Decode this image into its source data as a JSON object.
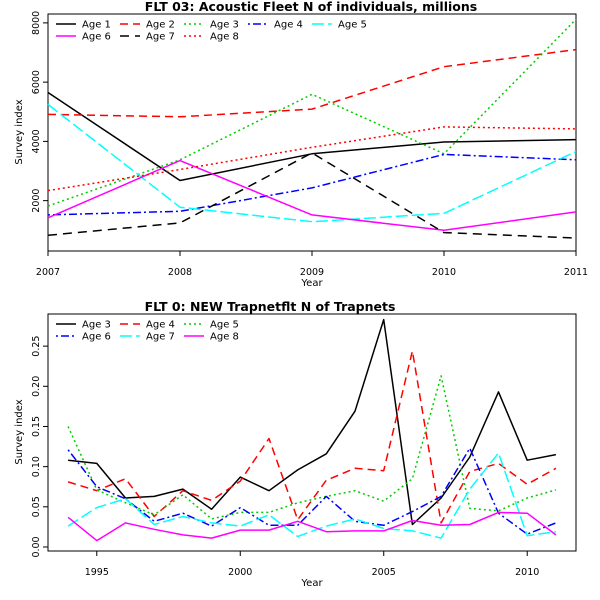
{
  "chart_data": [
    {
      "type": "line",
      "title": "FLT 03: Acoustic Fleet  N of individuals, millions",
      "xlabel": "Year",
      "ylabel": "Survey index",
      "xlim": [
        2007,
        2011
      ],
      "ylim": [
        300,
        8300
      ],
      "xticks": [
        "2007",
        "2008",
        "2009",
        "2010",
        "2011"
      ],
      "yticks": [
        "2000",
        "4000",
        "6000",
        "8000"
      ],
      "x": [
        2007,
        2008,
        2009,
        2010,
        2011
      ],
      "series": [
        {
          "name": "Age 1",
          "color": "#000000",
          "dash": "solid",
          "values": [
            5650,
            2680,
            3580,
            3980,
            4060
          ]
        },
        {
          "name": "Age 2",
          "color": "#ff0000",
          "dash": "dashed",
          "values": [
            4910,
            4830,
            5090,
            6520,
            7100
          ]
        },
        {
          "name": "Age 3",
          "color": "#00cd00",
          "dash": "dotted",
          "values": [
            1820,
            3380,
            5590,
            3580,
            8120
          ]
        },
        {
          "name": "Age 4",
          "color": "#0000ff",
          "dash": "dotdash",
          "values": [
            1520,
            1640,
            2430,
            3560,
            3380
          ]
        },
        {
          "name": "Age 5",
          "color": "#00ffff",
          "dash": "longdash",
          "values": [
            5250,
            1780,
            1290,
            1570,
            3660
          ]
        },
        {
          "name": "Age 6",
          "color": "#ff00ff",
          "dash": "solid",
          "values": [
            1420,
            3350,
            1520,
            1000,
            1620
          ]
        },
        {
          "name": "Age 7",
          "color": "#000000",
          "dash": "dashed2",
          "values": [
            830,
            1250,
            3610,
            920,
            740
          ]
        },
        {
          "name": "Age 8",
          "color": "#ff0000",
          "dash": "dotted",
          "values": [
            2340,
            3050,
            3800,
            4490,
            4420
          ]
        }
      ]
    },
    {
      "type": "line",
      "title": "FLT 0: NEW Trapnetflt    N of Trapnets",
      "xlabel": "Year",
      "ylabel": "Survey index",
      "xlim": [
        1993.3,
        2011.7
      ],
      "ylim": [
        -0.005,
        0.29
      ],
      "xticks": [
        "1995",
        "2000",
        "2005",
        "2010"
      ],
      "yticks": [
        "0.00",
        "0.05",
        "0.10",
        "0.15",
        "0.20",
        "0.25"
      ],
      "x": [
        1994,
        1995,
        1996,
        1997,
        1998,
        1999,
        2000,
        2001,
        2002,
        2003,
        2004,
        2005,
        2006,
        2007,
        2008,
        2009,
        2010,
        2011
      ],
      "series": [
        {
          "name": "Age 3",
          "color": "#000000",
          "dash": "solid",
          "values": [
            0.108,
            0.104,
            0.061,
            0.063,
            0.072,
            0.047,
            0.087,
            0.07,
            0.096,
            0.116,
            0.169,
            0.283,
            0.028,
            0.061,
            0.112,
            0.193,
            0.108,
            0.115
          ]
        },
        {
          "name": "Age 4",
          "color": "#ff0000",
          "dash": "dashed",
          "values": [
            0.081,
            0.07,
            0.085,
            0.038,
            0.07,
            0.058,
            0.082,
            0.135,
            0.034,
            0.083,
            0.098,
            0.095,
            0.244,
            0.03,
            0.094,
            0.104,
            0.078,
            0.098
          ]
        },
        {
          "name": "Age 5",
          "color": "#00cd00",
          "dash": "dotted",
          "values": [
            0.15,
            0.071,
            0.055,
            0.04,
            0.065,
            0.035,
            0.043,
            0.043,
            0.055,
            0.063,
            0.07,
            0.057,
            0.085,
            0.213,
            0.048,
            0.045,
            0.061,
            0.071
          ]
        },
        {
          "name": "Age 6",
          "color": "#0000ff",
          "dash": "dotdash",
          "values": [
            0.121,
            0.075,
            0.06,
            0.032,
            0.042,
            0.026,
            0.049,
            0.027,
            0.027,
            0.063,
            0.032,
            0.027,
            0.044,
            0.063,
            0.123,
            0.042,
            0.016,
            0.03
          ]
        },
        {
          "name": "Age 7",
          "color": "#00ffff",
          "dash": "longdash",
          "values": [
            0.026,
            0.049,
            0.06,
            0.028,
            0.038,
            0.03,
            0.026,
            0.04,
            0.013,
            0.026,
            0.035,
            0.023,
            0.02,
            0.011,
            0.072,
            0.117,
            0.014,
            0.019
          ]
        },
        {
          "name": "Age 8",
          "color": "#ff00ff",
          "dash": "solid",
          "values": [
            0.037,
            0.008,
            0.03,
            0.022,
            0.015,
            0.011,
            0.021,
            0.021,
            0.032,
            0.019,
            0.02,
            0.02,
            0.033,
            0.027,
            0.028,
            0.043,
            0.042,
            0.015
          ]
        }
      ]
    }
  ]
}
